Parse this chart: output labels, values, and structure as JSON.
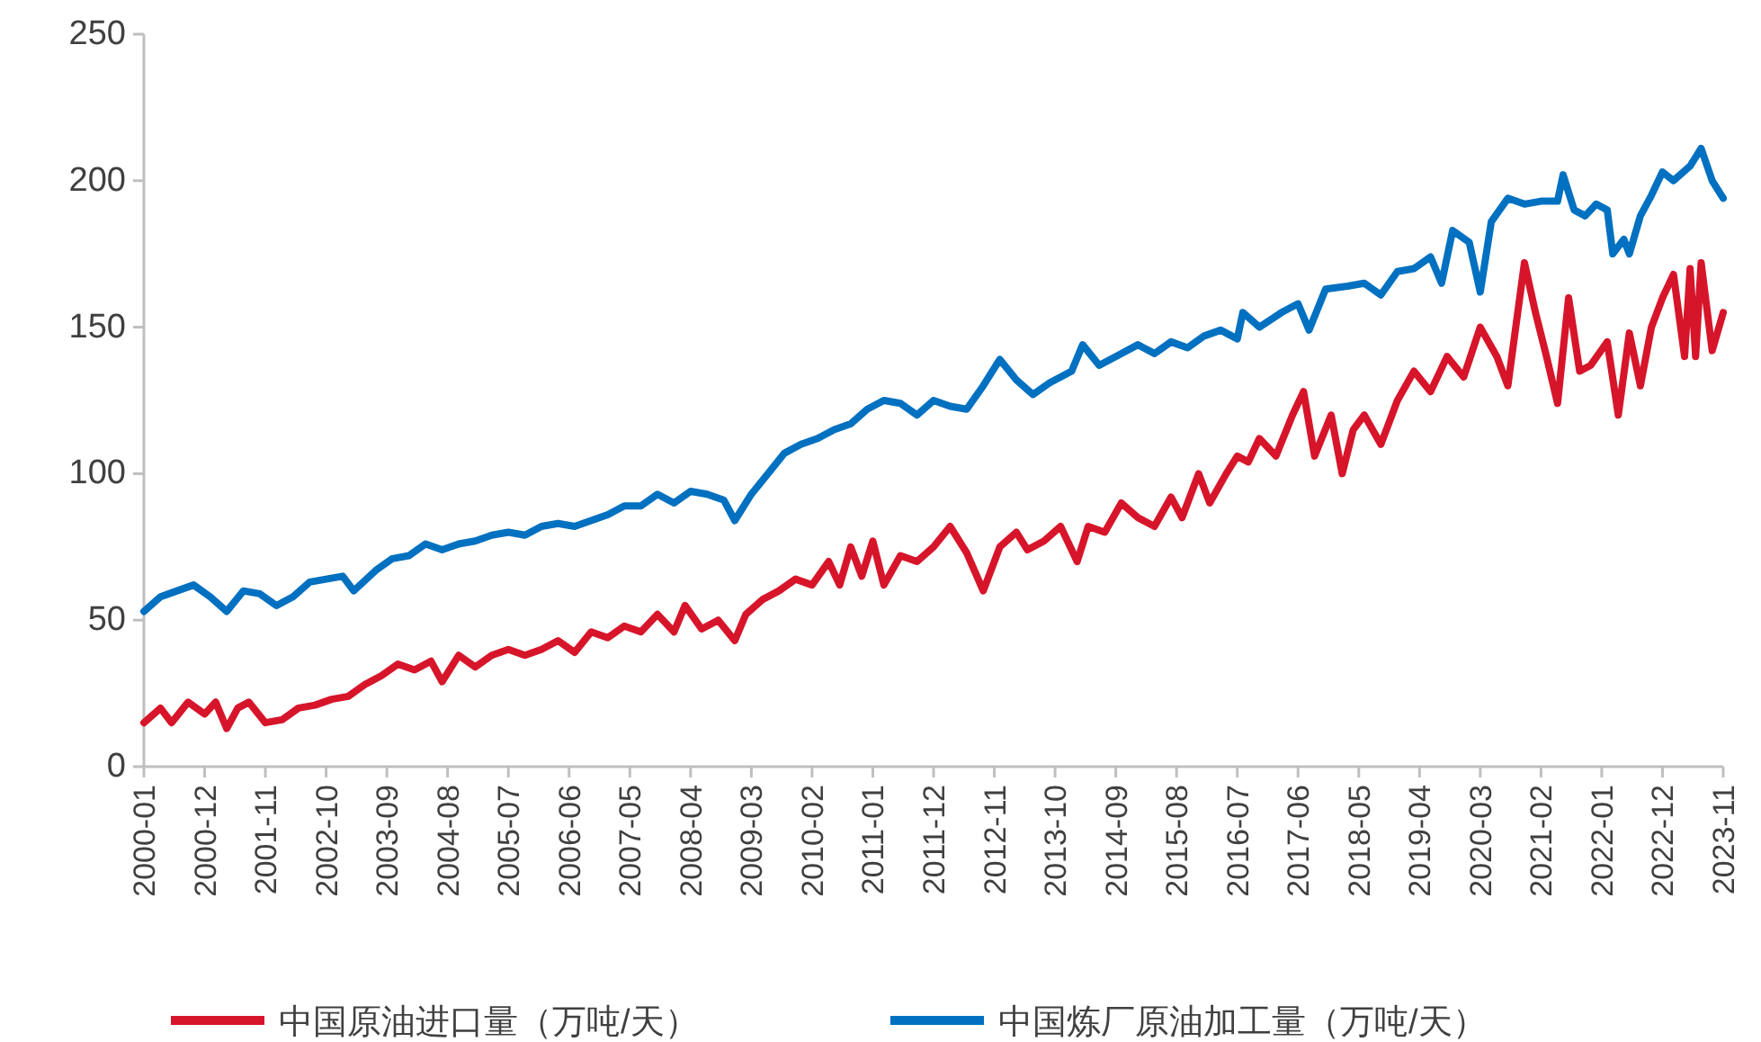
{
  "chart_data": {
    "type": "line",
    "legend": "bottom",
    "grid": false,
    "xlim": [
      "2000-01",
      "2023-11"
    ],
    "xticks": [
      "2000-01",
      "2000-12",
      "2001-11",
      "2002-10",
      "2003-09",
      "2004-08",
      "2005-07",
      "2006-06",
      "2007-05",
      "2008-04",
      "2009-03",
      "2010-02",
      "2011-01",
      "2011-12",
      "2012-11",
      "2013-10",
      "2014-09",
      "2015-08",
      "2016-07",
      "2017-06",
      "2018-05",
      "2019-04",
      "2020-03",
      "2021-02",
      "2022-01",
      "2022-12",
      "2023-11"
    ],
    "ylim": [
      0,
      250
    ],
    "yticks": [
      0,
      50,
      100,
      150,
      200,
      250
    ],
    "series": [
      {
        "name": "中国原油进口量（万吨/天）",
        "color": "#d7152a",
        "x": [
          "2000-01",
          "2000-04",
          "2000-06",
          "2000-09",
          "2000-12",
          "2001-02",
          "2001-04",
          "2001-06",
          "2001-08",
          "2001-11",
          "2002-02",
          "2002-05",
          "2002-08",
          "2002-11",
          "2003-02",
          "2003-05",
          "2003-08",
          "2003-11",
          "2004-02",
          "2004-05",
          "2004-07",
          "2004-10",
          "2005-01",
          "2005-04",
          "2005-07",
          "2005-10",
          "2006-01",
          "2006-04",
          "2006-07",
          "2006-10",
          "2007-01",
          "2007-04",
          "2007-07",
          "2007-10",
          "2008-01",
          "2008-03",
          "2008-06",
          "2008-09",
          "2008-12",
          "2009-02",
          "2009-05",
          "2009-08",
          "2009-11",
          "2010-02",
          "2010-05",
          "2010-07",
          "2010-09",
          "2010-11",
          "2011-01",
          "2011-03",
          "2011-06",
          "2011-09",
          "2011-12",
          "2012-03",
          "2012-06",
          "2012-09",
          "2012-12",
          "2013-03",
          "2013-05",
          "2013-08",
          "2013-11",
          "2014-02",
          "2014-04",
          "2014-07",
          "2014-10",
          "2015-01",
          "2015-04",
          "2015-07",
          "2015-09",
          "2015-12",
          "2016-02",
          "2016-05",
          "2016-07",
          "2016-09",
          "2016-11",
          "2017-02",
          "2017-05",
          "2017-07",
          "2017-09",
          "2017-12",
          "2018-02",
          "2018-04",
          "2018-06",
          "2018-09",
          "2018-12",
          "2019-03",
          "2019-06",
          "2019-09",
          "2019-12",
          "2020-03",
          "2020-06",
          "2020-08",
          "2020-11",
          "2021-01",
          "2021-03",
          "2021-05",
          "2021-07",
          "2021-09",
          "2021-11",
          "2022-02",
          "2022-04",
          "2022-06",
          "2022-08",
          "2022-10",
          "2022-12",
          "2023-02",
          "2023-04",
          "2023-05",
          "2023-06",
          "2023-07",
          "2023-09",
          "2023-11"
        ],
        "values": [
          15,
          20,
          15,
          22,
          18,
          22,
          13,
          20,
          22,
          15,
          16,
          20,
          21,
          23,
          24,
          28,
          31,
          35,
          33,
          36,
          29,
          38,
          34,
          38,
          40,
          38,
          40,
          43,
          39,
          46,
          44,
          48,
          46,
          52,
          46,
          55,
          47,
          50,
          43,
          52,
          57,
          60,
          64,
          62,
          70,
          62,
          75,
          65,
          77,
          62,
          72,
          70,
          75,
          82,
          73,
          60,
          75,
          80,
          74,
          77,
          82,
          70,
          82,
          80,
          90,
          85,
          82,
          92,
          85,
          100,
          90,
          100,
          106,
          104,
          112,
          106,
          120,
          128,
          106,
          120,
          100,
          115,
          120,
          110,
          125,
          135,
          128,
          140,
          133,
          150,
          140,
          130,
          172,
          155,
          140,
          124,
          160,
          135,
          137,
          145,
          120,
          148,
          130,
          150,
          160,
          168,
          140,
          170,
          140,
          172,
          142,
          155
        ]
      },
      {
        "name": "中国炼厂原油加工量（万吨/天）",
        "color": "#0070c0",
        "x": [
          "2000-01",
          "2000-04",
          "2000-07",
          "2000-10",
          "2001-01",
          "2001-04",
          "2001-07",
          "2001-10",
          "2002-01",
          "2002-04",
          "2002-07",
          "2002-10",
          "2003-01",
          "2003-03",
          "2003-07",
          "2003-10",
          "2004-01",
          "2004-04",
          "2004-07",
          "2004-10",
          "2005-01",
          "2005-04",
          "2005-07",
          "2005-10",
          "2006-01",
          "2006-04",
          "2006-07",
          "2006-10",
          "2007-01",
          "2007-04",
          "2007-07",
          "2007-10",
          "2008-01",
          "2008-04",
          "2008-07",
          "2008-10",
          "2008-12",
          "2009-03",
          "2009-06",
          "2009-09",
          "2009-12",
          "2010-03",
          "2010-06",
          "2010-09",
          "2010-12",
          "2011-03",
          "2011-06",
          "2011-09",
          "2011-12",
          "2012-03",
          "2012-06",
          "2012-09",
          "2012-12",
          "2013-03",
          "2013-06",
          "2013-09",
          "2014-01",
          "2014-03",
          "2014-06",
          "2014-09",
          "2015-01",
          "2015-04",
          "2015-07",
          "2015-10",
          "2016-01",
          "2016-04",
          "2016-07",
          "2016-08",
          "2016-11",
          "2017-03",
          "2017-06",
          "2017-08",
          "2017-11",
          "2018-03",
          "2018-06",
          "2018-09",
          "2018-12",
          "2019-03",
          "2019-06",
          "2019-08",
          "2019-10",
          "2020-01",
          "2020-03",
          "2020-05",
          "2020-08",
          "2020-11",
          "2021-02",
          "2021-05",
          "2021-06",
          "2021-08",
          "2021-10",
          "2021-12",
          "2022-02",
          "2022-03",
          "2022-05",
          "2022-06",
          "2022-08",
          "2022-10",
          "2022-12",
          "2023-02",
          "2023-05",
          "2023-07",
          "2023-09",
          "2023-11"
        ],
        "values": [
          53,
          58,
          60,
          62,
          58,
          53,
          60,
          59,
          55,
          58,
          63,
          64,
          65,
          60,
          67,
          71,
          72,
          76,
          74,
          76,
          77,
          79,
          80,
          79,
          82,
          83,
          82,
          84,
          86,
          89,
          89,
          93,
          90,
          94,
          93,
          91,
          84,
          93,
          100,
          107,
          110,
          112,
          115,
          117,
          122,
          125,
          124,
          120,
          125,
          123,
          122,
          130,
          139,
          132,
          127,
          131,
          135,
          144,
          137,
          140,
          144,
          141,
          145,
          143,
          147,
          149,
          146,
          155,
          150,
          155,
          158,
          149,
          163,
          164,
          165,
          161,
          169,
          170,
          174,
          165,
          183,
          179,
          162,
          186,
          194,
          192,
          193,
          193,
          202,
          190,
          188,
          192,
          190,
          175,
          180,
          175,
          188,
          195,
          203,
          200,
          205,
          211,
          200,
          194
        ]
      }
    ]
  }
}
